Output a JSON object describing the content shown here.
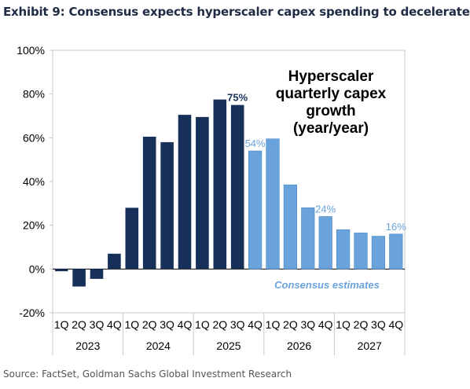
{
  "header": {
    "title": "Exhibit 9: Consensus expects hyperscaler capex spending to decelerate"
  },
  "footer": {
    "source": "Source: FactSet, Goldman Sachs Global Investment Research"
  },
  "chart_data": {
    "type": "bar",
    "quarters": [
      "1Q",
      "2Q",
      "3Q",
      "4Q",
      "1Q",
      "2Q",
      "3Q",
      "4Q",
      "1Q",
      "2Q",
      "3Q",
      "4Q",
      "1Q",
      "2Q",
      "3Q",
      "4Q",
      "1Q",
      "2Q",
      "3Q",
      "4Q"
    ],
    "years": [
      "2023",
      "2024",
      "2025",
      "2026",
      "2027"
    ],
    "series": [
      {
        "name": "",
        "values": [
          -1,
          -8,
          -4.5,
          7,
          28,
          60.5,
          58,
          70.5,
          69.5,
          77.5,
          75,
          54,
          59.5,
          38.5,
          28,
          24,
          18,
          16.5,
          15,
          16
        ],
        "type": [
          "actual",
          "actual",
          "actual",
          "actual",
          "actual",
          "actual",
          "actual",
          "actual",
          "actual",
          "actual",
          "actual",
          "estimate",
          "estimate",
          "estimate",
          "estimate",
          "estimate",
          "estimate",
          "estimate",
          "estimate",
          "estimate"
        ]
      }
    ],
    "colors": {
      "actual": "#17305a",
      "estimate": "#6aa3dc",
      "grid": "#c8c8c8",
      "axis": "#000000"
    },
    "ylim": [
      -20,
      100
    ],
    "yticks": [
      "-20%",
      "0%",
      "20%",
      "40%",
      "60%",
      "80%",
      "100%"
    ],
    "annotation_title": [
      "Hyperscaler",
      "quarterly capex",
      "growth",
      "(year/year)"
    ],
    "consensus_label": "Consensus estimates",
    "data_labels": [
      {
        "index": 10,
        "text": "75%",
        "type": "actual"
      },
      {
        "index": 11,
        "text": "54%",
        "type": "estimate"
      },
      {
        "index": 15,
        "text": "24%",
        "type": "estimate"
      },
      {
        "index": 19,
        "text": "16%",
        "type": "estimate"
      }
    ],
    "grid": false,
    "legend": "none"
  }
}
